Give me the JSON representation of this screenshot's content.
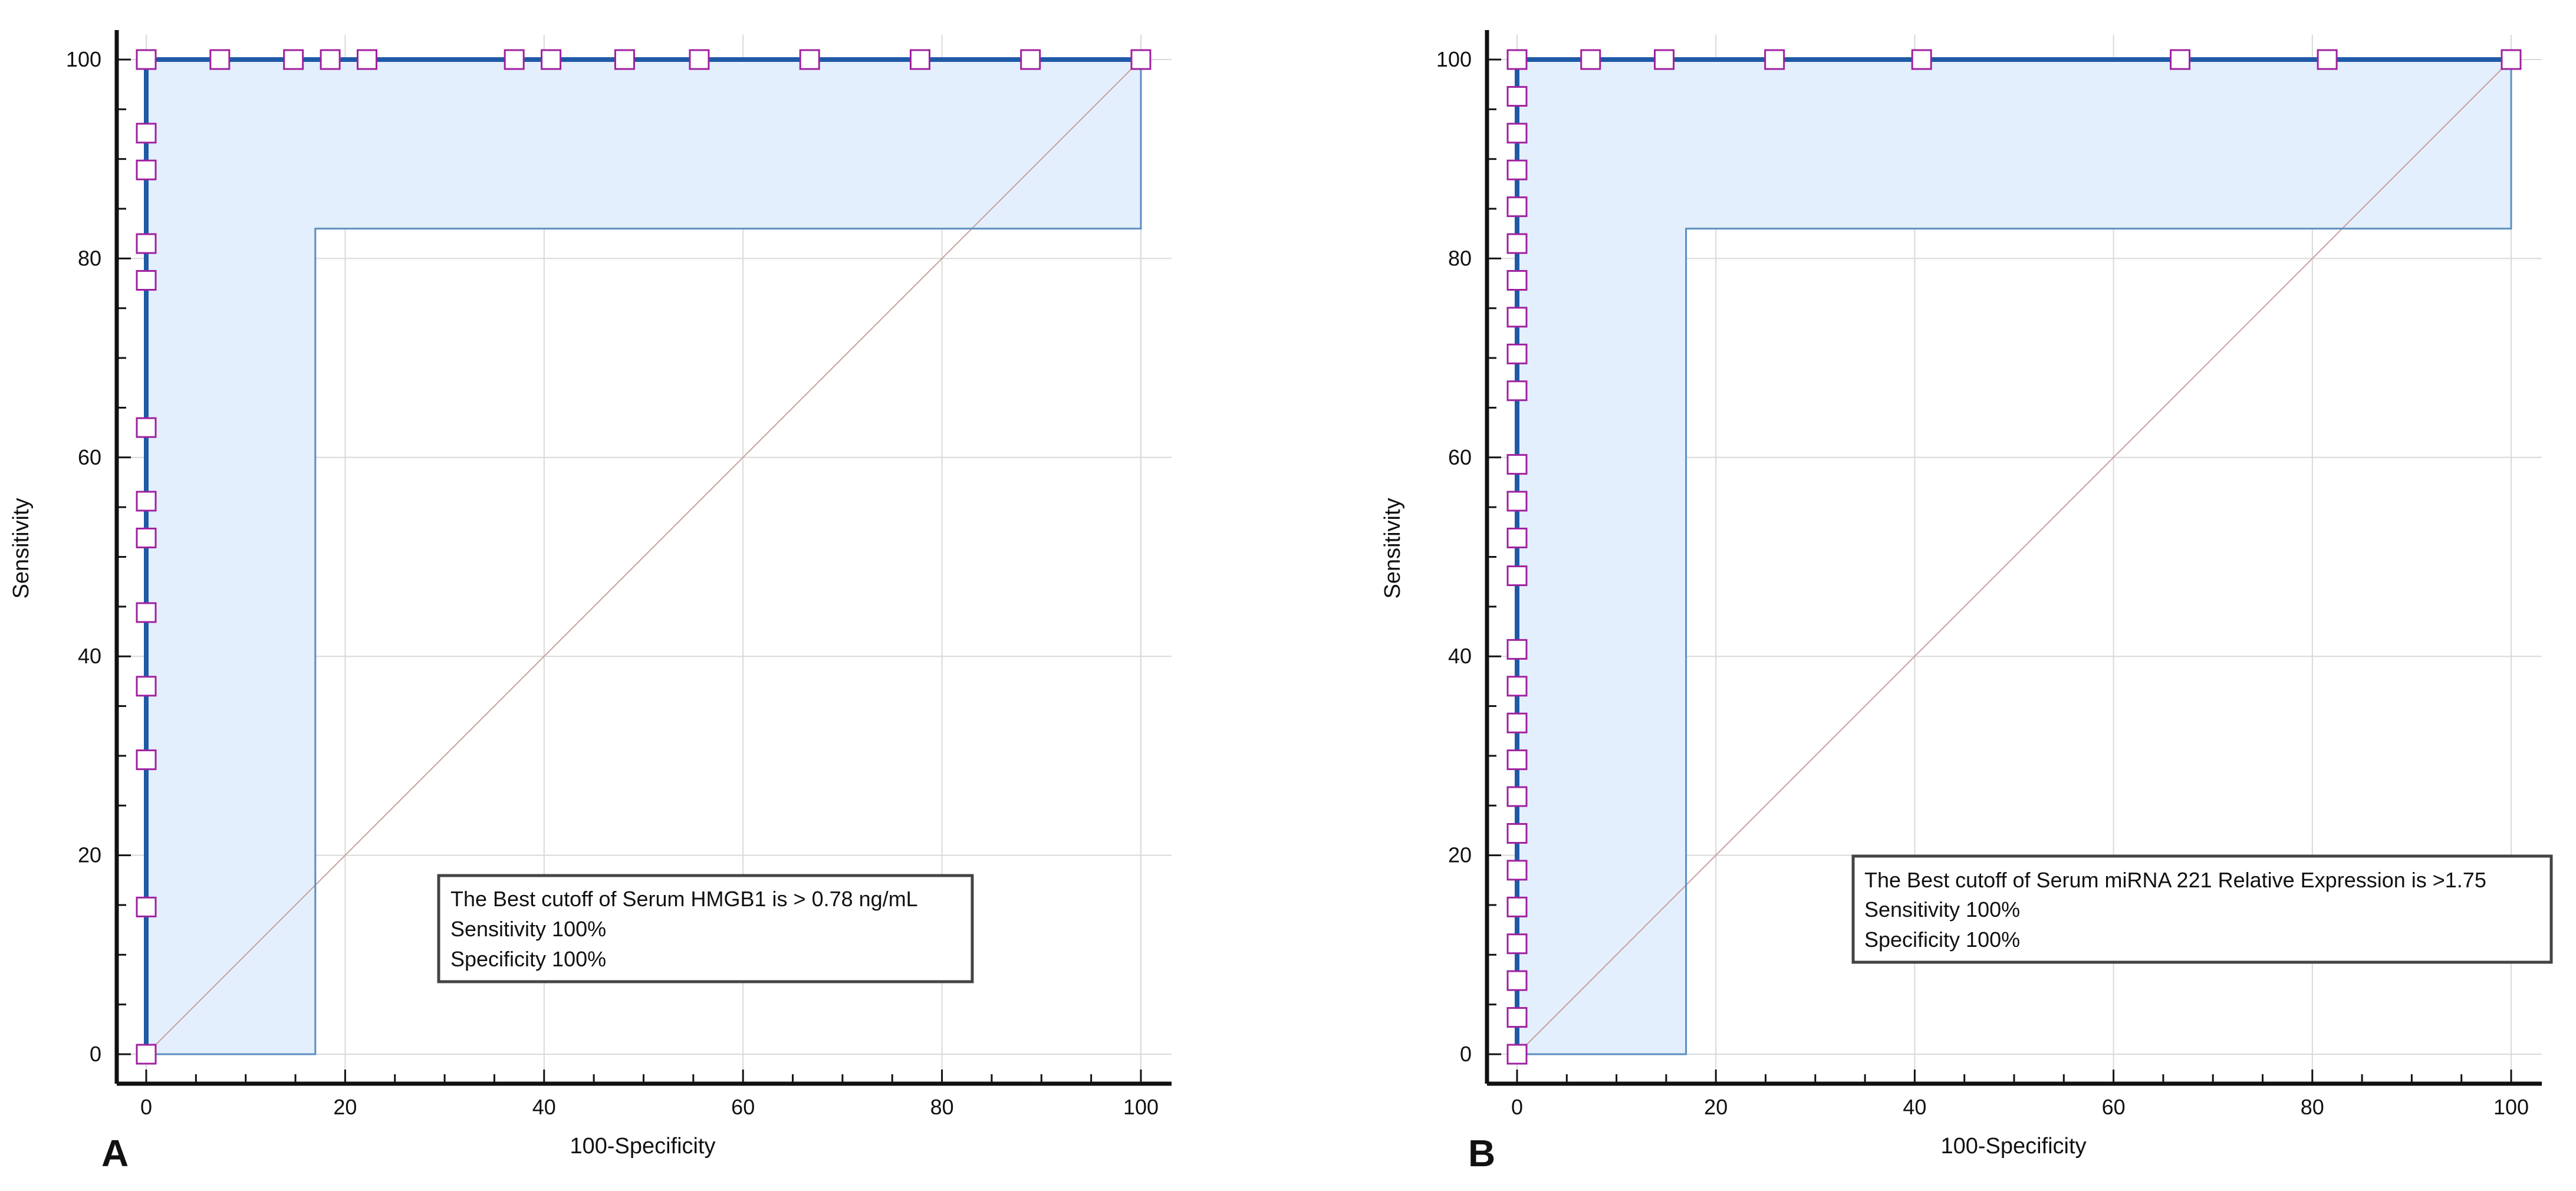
{
  "chart_data": [
    {
      "type": "line",
      "panel_label": "A",
      "xlabel": "100-Specificity",
      "ylabel": "Sensitivity",
      "xlim": [
        0,
        100
      ],
      "ylim": [
        0,
        100
      ],
      "xticks": [
        0,
        20,
        40,
        60,
        80,
        100
      ],
      "yticks": [
        0,
        20,
        40,
        60,
        80,
        100
      ],
      "grid": true,
      "series": [
        {
          "role": "roc_curve",
          "x": [
            0,
            0,
            100
          ],
          "y": [
            0,
            100,
            100
          ]
        },
        {
          "role": "confidence_interval_bound",
          "x": [
            0,
            17,
            17,
            100,
            100
          ],
          "y": [
            0,
            0,
            83,
            83,
            100
          ]
        },
        {
          "role": "reference_diagonal",
          "x": [
            0,
            100
          ],
          "y": [
            0,
            100
          ]
        },
        {
          "role": "cutoff_points",
          "x": [
            0,
            0,
            0,
            0,
            0,
            0,
            0,
            0,
            0,
            0,
            0,
            0,
            0,
            7.4,
            14.8,
            18.5,
            22.2,
            37,
            40.7,
            48.1,
            55.6,
            66.7,
            77.8,
            88.9,
            100
          ],
          "y": [
            0,
            14.8,
            29.6,
            37,
            44.4,
            51.9,
            55.6,
            63,
            77.8,
            81.5,
            88.9,
            92.6,
            100,
            100,
            100,
            100,
            100,
            100,
            100,
            100,
            100,
            100,
            100,
            100,
            100
          ]
        }
      ],
      "annotation": [
        "The Best cutoff of Serum HMGB1 is > 0.78 ng/mL",
        "Sensitivity 100%",
        "Specificity 100%"
      ],
      "colors": {
        "roc": "#1f5aa6",
        "fill": "#e3effc",
        "ci": "#5b8fbf",
        "diagonal": "#c9a0a0",
        "marker": "#a020a0"
      }
    },
    {
      "type": "line",
      "panel_label": "B",
      "xlabel": "100-Specificity",
      "ylabel": "Sensitivity",
      "xlim": [
        0,
        100
      ],
      "ylim": [
        0,
        100
      ],
      "xticks": [
        0,
        20,
        40,
        60,
        80,
        100
      ],
      "yticks": [
        0,
        20,
        40,
        60,
        80,
        100
      ],
      "grid": true,
      "series": [
        {
          "role": "roc_curve",
          "x": [
            0,
            0,
            100
          ],
          "y": [
            0,
            100,
            100
          ]
        },
        {
          "role": "confidence_interval_bound",
          "x": [
            0,
            17,
            17,
            100,
            100
          ],
          "y": [
            0,
            0,
            83,
            83,
            100
          ]
        },
        {
          "role": "reference_diagonal",
          "x": [
            0,
            100
          ],
          "y": [
            0,
            100
          ]
        },
        {
          "role": "cutoff_points",
          "x": [
            0,
            0,
            0,
            0,
            0,
            0,
            0,
            0,
            0,
            0,
            0,
            0,
            0,
            0,
            0,
            0,
            0,
            0,
            0,
            0,
            0,
            0,
            0,
            0,
            0,
            0,
            0,
            7.4,
            14.8,
            25.9,
            40.7,
            66.7,
            81.5,
            100
          ],
          "y": [
            0,
            3.7,
            7.4,
            11.1,
            14.8,
            18.5,
            22.2,
            25.9,
            29.6,
            33.3,
            37,
            40.7,
            48.1,
            51.9,
            55.6,
            59.3,
            66.7,
            70.4,
            74.1,
            77.8,
            81.5,
            85.2,
            88.9,
            92.6,
            96.3,
            100,
            100,
            100,
            100,
            100,
            100,
            100,
            100,
            100
          ],
          "note": ""
        }
      ],
      "annotation": [
        "The Best cutoff of Serum miRNA 221 Relative Expression is >1.75",
        "Sensitivity 100%",
        "Specificity 100%"
      ],
      "colors": {
        "roc": "#1f5aa6",
        "fill": "#e3effc",
        "ci": "#5b8fbf",
        "diagonal": "#c9a0a0",
        "marker": "#a020a0"
      }
    }
  ]
}
